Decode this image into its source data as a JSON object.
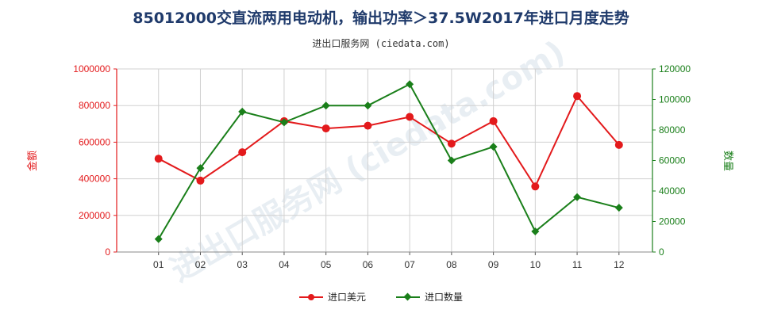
{
  "chart_data": {
    "type": "line",
    "title": "85012000交直流两用电动机，输出功率＞37.5W2017年进口月度走势",
    "subtitle": "进出口服务网 (ciedata.com)",
    "categories": [
      "01",
      "02",
      "03",
      "04",
      "05",
      "06",
      "07",
      "08",
      "09",
      "10",
      "11",
      "12"
    ],
    "y_left": {
      "label": "金额",
      "range": [
        0,
        1000000
      ],
      "ticks": [
        0,
        200000,
        400000,
        600000,
        800000,
        1000000
      ],
      "color": "#e31a1c"
    },
    "y_right": {
      "label": "数量",
      "range": [
        0,
        120000
      ],
      "ticks": [
        0,
        20000,
        40000,
        60000,
        80000,
        100000,
        120000
      ],
      "color": "#1a7f1a"
    },
    "series": [
      {
        "name": "进口美元",
        "axis": "left",
        "color": "#e31a1c",
        "marker": "circle",
        "values": [
          510000,
          390000,
          545000,
          715000,
          675000,
          690000,
          738000,
          592000,
          715000,
          358000,
          852000,
          585000
        ]
      },
      {
        "name": "进口数量",
        "axis": "right",
        "color": "#1a7f1a",
        "marker": "diamond",
        "values": [
          8500,
          55000,
          92000,
          85000,
          96000,
          96000,
          110000,
          60000,
          69000,
          13500,
          36000,
          29000
        ]
      }
    ],
    "grid": true,
    "legend_position": "bottom-center"
  }
}
